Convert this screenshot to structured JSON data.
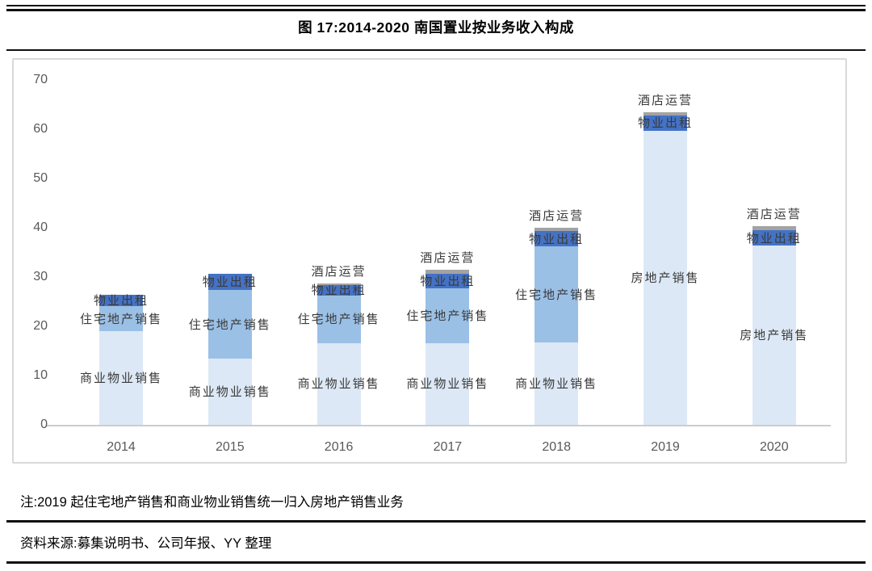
{
  "header": {
    "title": "图 17:2014-2020 南国置业按业务收入构成"
  },
  "footer": {
    "note": "注:2019 起住宅地产销售和商业物业销售统一归入房地产销售业务",
    "source": "资料来源:募集说明书、公司年报、YY 整理"
  },
  "colors": {
    "light": "#dce8f5",
    "medium": "#9ac0e6",
    "dark": "#4472c4",
    "gray": "#a3a3a3",
    "axis_text": "#595959",
    "axis_line": "#c9cdd2",
    "box_border": "#d9d9d9",
    "annotation_text": "#3a3a3a"
  },
  "chart_data": {
    "type": "bar",
    "stacked": true,
    "title": "2014-2020 南国置业按业务收入构成",
    "categories": [
      "2014",
      "2015",
      "2016",
      "2017",
      "2018",
      "2019",
      "2020"
    ],
    "ylim": [
      0,
      70
    ],
    "yticks": [
      0,
      10,
      20,
      30,
      40,
      50,
      60,
      70
    ],
    "grid": false,
    "legend": "none (labels annotated on bars)",
    "series": [
      {
        "name": "商业物业销售",
        "color_key": "light",
        "values": [
          19.0,
          13.4,
          16.6,
          16.6,
          16.7,
          0,
          0
        ]
      },
      {
        "name": "房地产销售",
        "color_key": "light",
        "values": [
          0,
          0,
          0,
          0,
          0,
          59.7,
          36.4
        ]
      },
      {
        "name": "住宅地产销售",
        "color_key": "medium",
        "values": [
          5.1,
          13.9,
          9.6,
          11.1,
          19.5,
          0,
          0
        ]
      },
      {
        "name": "物业出租",
        "color_key": "dark",
        "values": [
          2.3,
          3.3,
          2.2,
          3.0,
          3.1,
          3.1,
          3.1
        ]
      },
      {
        "name": "酒店运营",
        "color_key": "gray",
        "values": [
          0,
          0,
          0.3,
          0.7,
          0.7,
          0.6,
          0.8
        ]
      }
    ]
  }
}
